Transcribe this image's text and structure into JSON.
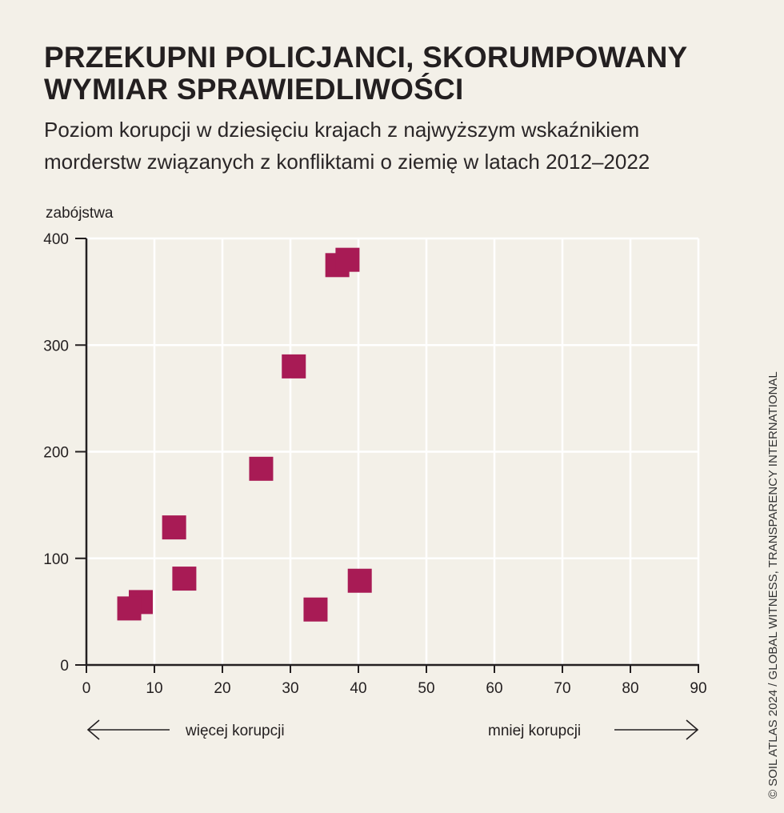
{
  "title_lines": [
    "PRZEKUPNI POLICJANCI, SKORUMPOWANY",
    "WYMIAR SPRAWIEDLIWOŚCI"
  ],
  "subtitle_lines": [
    "Poziom korupcji w dziesięciu krajach z najwyższym wskaźnikiem",
    "morderstw związanych z konfliktami o ziemię w latach 2012–2022"
  ],
  "credit": "© SOIL ATLAS 2024 / GLOBAL WITNESS, TRANSPARENCY INTERNATIONAL",
  "colors": {
    "marker": "#a81b55",
    "background": "#f3f0e8",
    "grid": "#ffffff",
    "axis": "#231f20"
  },
  "chart_data": {
    "type": "scatter",
    "title": "PRZEKUPNI POLICJANCI, SKORUMPOWANY WYMIAR SPRAWIEDLIWOŚCI",
    "ylabel": "zabójstwa",
    "xlabel_left": "więcej korupcji",
    "xlabel_right": "mniej korupcji",
    "xlim": [
      0,
      90
    ],
    "ylim": [
      0,
      400
    ],
    "xticks": [
      0,
      10,
      20,
      30,
      40,
      50,
      60,
      70,
      80,
      90
    ],
    "yticks": [
      0,
      100,
      200,
      300,
      400
    ],
    "grid": true,
    "marker": "square",
    "points": [
      {
        "x": 8.0,
        "y": 59
      },
      {
        "x": 6.3,
        "y": 53
      },
      {
        "x": 12.9,
        "y": 129
      },
      {
        "x": 14.4,
        "y": 81
      },
      {
        "x": 25.7,
        "y": 184
      },
      {
        "x": 30.5,
        "y": 280
      },
      {
        "x": 33.7,
        "y": 52
      },
      {
        "x": 36.9,
        "y": 375
      },
      {
        "x": 38.4,
        "y": 380
      },
      {
        "x": 40.2,
        "y": 79
      }
    ]
  }
}
